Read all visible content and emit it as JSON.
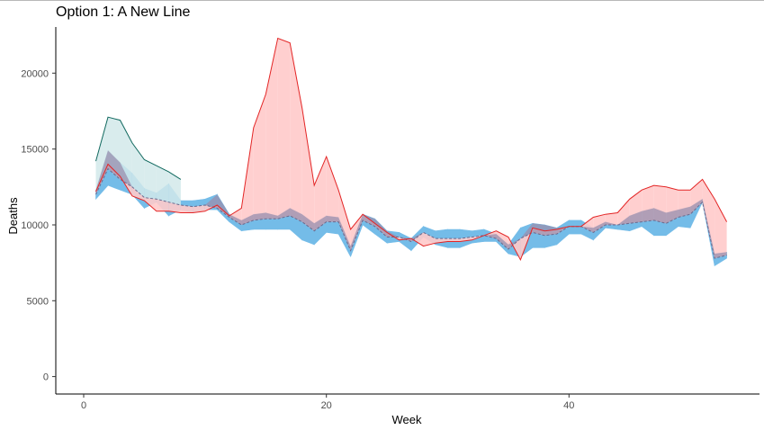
{
  "chart_data": {
    "type": "area",
    "title": "Option 1: A New Line",
    "xlabel": "Week",
    "ylabel": "Deaths",
    "xlim": [
      -2.3,
      55.7
    ],
    "ylim": [
      -1150,
      23400
    ],
    "x_ticks": [
      0,
      20,
      40
    ],
    "y_ticks": [
      0,
      5000,
      10000,
      15000,
      20000
    ],
    "grid": false,
    "legend": "none",
    "colors": {
      "baseline_band": "#74bce8",
      "baseline_line": "#6a6a8e",
      "teal_fill": "#d2e9ea",
      "teal_line": "#11695f",
      "red_fill": "#ffcaca",
      "red_line": "#e32525",
      "overlap": "#9a8fae",
      "axis": "#000000"
    },
    "series": [
      {
        "role": "expected-range",
        "x": [
          1,
          2,
          3,
          4,
          5,
          6,
          7,
          8,
          9,
          10,
          11,
          12,
          13,
          14,
          15,
          16,
          17,
          18,
          19,
          20,
          21,
          22,
          23,
          24,
          25,
          26,
          27,
          28,
          29,
          30,
          31,
          32,
          33,
          34,
          35,
          36,
          37,
          38,
          39,
          40,
          41,
          42,
          43,
          44,
          45,
          46,
          47,
          48,
          49,
          50,
          51,
          52,
          53
        ],
        "lower": [
          11700,
          12600,
          12300,
          12000,
          11100,
          11500,
          10600,
          11000,
          10800,
          11000,
          11000,
          10200,
          9600,
          9700,
          9700,
          9700,
          9700,
          9000,
          8700,
          9500,
          9400,
          7900,
          10000,
          9400,
          8800,
          8900,
          8300,
          9200,
          8700,
          8500,
          8500,
          8800,
          8900,
          8900,
          8100,
          7900,
          8500,
          8500,
          8700,
          9400,
          9400,
          9000,
          9800,
          9700,
          9600,
          9900,
          9300,
          9300,
          9900,
          9800,
          11500,
          7300,
          7800
        ],
        "upper": [
          12300,
          14900,
          14100,
          13400,
          12400,
          12100,
          12700,
          11600,
          11600,
          11700,
          12000,
          10700,
          10300,
          10700,
          10800,
          10600,
          11100,
          10700,
          10100,
          10600,
          10500,
          8600,
          10700,
          10400,
          9600,
          9500,
          9100,
          9900,
          9600,
          9700,
          9700,
          9600,
          9700,
          9400,
          8700,
          9800,
          10100,
          10000,
          9800,
          10300,
          10300,
          9800,
          10200,
          10000,
          10600,
          10900,
          11100,
          10800,
          11000,
          11200,
          11700,
          8100,
          8200
        ]
      },
      {
        "role": "expected-mean",
        "x": [
          1,
          2,
          3,
          4,
          5,
          6,
          7,
          8,
          9,
          10,
          11,
          12,
          13,
          14,
          15,
          16,
          17,
          18,
          19,
          20,
          21,
          22,
          23,
          24,
          25,
          26,
          27,
          28,
          29,
          30,
          31,
          32,
          33,
          34,
          35,
          36,
          37,
          38,
          39,
          40,
          41,
          42,
          43,
          44,
          45,
          46,
          47,
          48,
          49,
          50,
          51,
          52,
          53
        ],
        "y": [
          12000,
          13700,
          13000,
          12500,
          11800,
          11700,
          11500,
          11300,
          11200,
          11300,
          11100,
          10500,
          10000,
          10300,
          10400,
          10400,
          10600,
          10200,
          9600,
          10200,
          10200,
          8300,
          10300,
          9900,
          9200,
          9200,
          8900,
          9500,
          9100,
          9100,
          9100,
          9200,
          9300,
          9100,
          8400,
          9100,
          9500,
          9300,
          9400,
          9900,
          9900,
          9500,
          10000,
          10000,
          10100,
          10200,
          10300,
          10100,
          10500,
          10700,
          11500,
          7800,
          8000
        ]
      },
      {
        "role": "teal-observed",
        "x": [
          1,
          2,
          3,
          4,
          5,
          6,
          7,
          8
        ],
        "y": [
          14200,
          17100,
          16900,
          15400,
          14300,
          13900,
          13500,
          13000
        ]
      },
      {
        "role": "red-observed",
        "x": [
          1,
          2,
          3,
          4,
          5,
          6,
          7,
          8,
          9,
          10,
          11,
          12,
          13,
          14,
          15,
          16,
          17,
          18,
          19,
          20,
          21,
          22,
          23,
          24,
          25,
          26,
          27,
          28,
          29,
          30,
          31,
          32,
          33,
          34,
          35,
          36,
          37,
          38,
          39,
          40,
          41,
          42,
          43,
          44,
          45,
          46,
          47,
          48,
          49,
          50,
          51,
          52,
          53
        ],
        "y": [
          12200,
          14000,
          13200,
          11900,
          11600,
          10900,
          10900,
          10800,
          10800,
          10900,
          11300,
          10600,
          11100,
          16400,
          18600,
          22300,
          22000,
          17700,
          12600,
          14500,
          12300,
          9700,
          10700,
          10100,
          9500,
          9000,
          9100,
          8600,
          8800,
          8900,
          8900,
          9000,
          9300,
          9600,
          9200,
          7700,
          9800,
          9600,
          9700,
          9900,
          9900,
          10500,
          10700,
          10800,
          11700,
          12300,
          12600,
          12500,
          12300,
          12300,
          13000,
          11700,
          10200
        ]
      }
    ]
  }
}
